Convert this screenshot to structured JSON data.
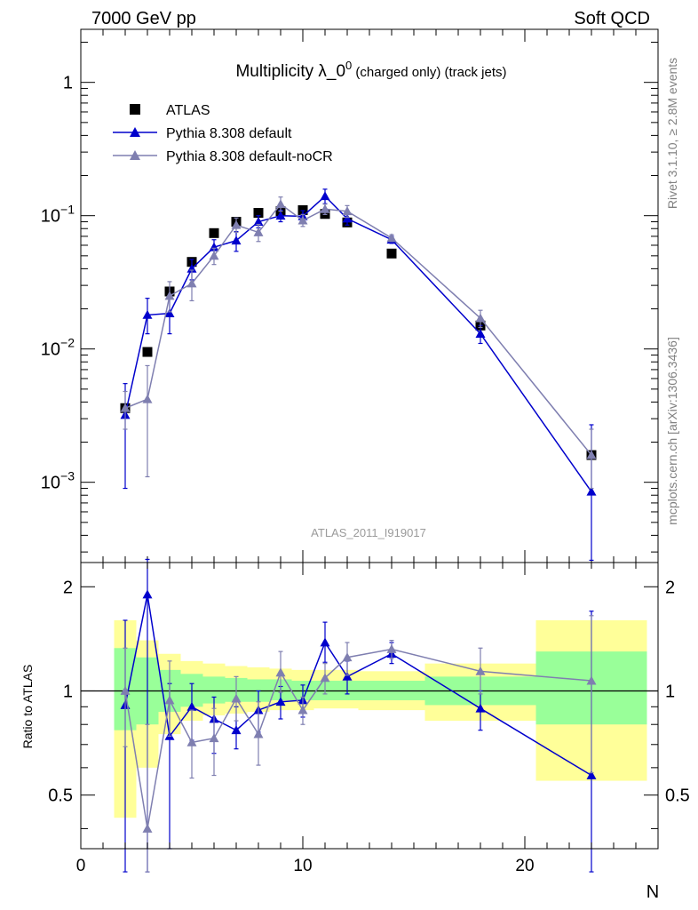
{
  "header": {
    "left": "7000 GeV pp",
    "right": "Soft QCD"
  },
  "side_labels": {
    "rivet": "Rivet 3.1.10, ≥ 2.8M events",
    "mcplots": "mcplots.cern.ch [arXiv:1306.3436]"
  },
  "colors": {
    "atlas": "#000000",
    "default": "#0000cc",
    "nocr": "#7f7fb0",
    "band_yellow": "#ffff99",
    "band_green": "#99ff99"
  },
  "chart_data": [
    {
      "type": "scatter",
      "title": "Multiplicity λ_0",
      "title_sup": "0",
      "title_suffix": " (charged only) (track jets)",
      "watermark": "ATLAS_2011_I919017",
      "xlabel": "",
      "ylabel": "",
      "xlim": [
        0,
        26
      ],
      "ylim": [
        0.00025,
        2.5
      ],
      "yscale": "log",
      "y_ticks": [
        {
          "v": 1,
          "base": "1",
          "exp": ""
        },
        {
          "v": 0.1,
          "base": "10",
          "exp": "−1"
        },
        {
          "v": 0.01,
          "base": "10",
          "exp": "−2"
        },
        {
          "v": 0.001,
          "base": "10",
          "exp": "−3"
        }
      ],
      "legend": {
        "position": "top-left"
      },
      "series": [
        {
          "name": "ATLAS",
          "marker": "square",
          "x": [
            2,
            3,
            4,
            5,
            6,
            7,
            8,
            9,
            10,
            11,
            12,
            14,
            18,
            23
          ],
          "y": [
            0.0036,
            0.0095,
            0.027,
            0.045,
            0.074,
            0.09,
            0.105,
            0.108,
            0.11,
            0.103,
            0.089,
            0.052,
            0.015,
            0.0016
          ]
        },
        {
          "name": "Pythia 8.308 default",
          "marker": "triangle",
          "x": [
            2,
            3,
            4,
            5,
            6,
            7,
            8,
            9,
            10,
            11,
            12,
            14,
            18,
            23
          ],
          "y": [
            0.0032,
            0.018,
            0.0185,
            0.04,
            0.058,
            0.065,
            0.09,
            0.1,
            0.099,
            0.14,
            0.095,
            0.066,
            0.013,
            0.00085
          ],
          "err_lo": [
            0.0009,
            0.013,
            0.013,
            0.033,
            0.05,
            0.054,
            0.081,
            0.09,
            0.09,
            0.123,
            0.085,
            0.062,
            0.011,
            0.00026
          ],
          "err_hi": [
            0.0055,
            0.024,
            0.025,
            0.047,
            0.066,
            0.076,
            0.1,
            0.11,
            0.109,
            0.158,
            0.105,
            0.07,
            0.015,
            0.0027
          ]
        },
        {
          "name": "Pythia 8.308 default-noCR",
          "marker": "triangle",
          "x": [
            2,
            3,
            4,
            5,
            6,
            7,
            8,
            9,
            10,
            11,
            12,
            14,
            18,
            23
          ],
          "y": [
            0.0036,
            0.0042,
            0.025,
            0.031,
            0.05,
            0.085,
            0.075,
            0.122,
            0.092,
            0.112,
            0.108,
            0.068,
            0.017,
            0.0016
          ],
          "err_lo": [
            0.0025,
            0.0011,
            0.019,
            0.023,
            0.043,
            0.075,
            0.064,
            0.108,
            0.083,
            0.102,
            0.097,
            0.064,
            0.0145,
            0.0009
          ],
          "err_hi": [
            0.0048,
            0.0075,
            0.032,
            0.039,
            0.057,
            0.096,
            0.086,
            0.138,
            0.102,
            0.122,
            0.119,
            0.072,
            0.0195,
            0.0025
          ]
        }
      ]
    },
    {
      "type": "scatter",
      "xlabel": "N",
      "ylabel": "Ratio to ATLAS",
      "xlim": [
        0,
        26
      ],
      "ylim": [
        0.35,
        2.35
      ],
      "yscale": "log",
      "x_ticks": [
        0,
        10,
        20
      ],
      "y_ticks": [
        0.5,
        1,
        2
      ],
      "band_bins": [
        {
          "x0": 1.5,
          "x1": 2.5,
          "yellow": [
            0.43,
            1.6
          ],
          "green": [
            0.77,
            1.33
          ]
        },
        {
          "x0": 2.5,
          "x1": 3.5,
          "yellow": [
            0.6,
            1.4
          ],
          "green": [
            0.8,
            1.25
          ]
        },
        {
          "x0": 3.5,
          "x1": 4.5,
          "yellow": [
            0.75,
            1.28
          ],
          "green": [
            0.87,
            1.15
          ]
        },
        {
          "x0": 4.5,
          "x1": 5.5,
          "yellow": [
            0.82,
            1.22
          ],
          "green": [
            0.9,
            1.12
          ]
        },
        {
          "x0": 5.5,
          "x1": 6.5,
          "yellow": [
            0.85,
            1.2
          ],
          "green": [
            0.92,
            1.1
          ]
        },
        {
          "x0": 6.5,
          "x1": 7.5,
          "yellow": [
            0.86,
            1.18
          ],
          "green": [
            0.93,
            1.09
          ]
        },
        {
          "x0": 7.5,
          "x1": 8.5,
          "yellow": [
            0.87,
            1.17
          ],
          "green": [
            0.93,
            1.08
          ]
        },
        {
          "x0": 8.5,
          "x1": 9.5,
          "yellow": [
            0.88,
            1.16
          ],
          "green": [
            0.94,
            1.08
          ]
        },
        {
          "x0": 9.5,
          "x1": 10.5,
          "yellow": [
            0.88,
            1.15
          ],
          "green": [
            0.94,
            1.07
          ]
        },
        {
          "x0": 10.5,
          "x1": 11.5,
          "yellow": [
            0.89,
            1.15
          ],
          "green": [
            0.94,
            1.07
          ]
        },
        {
          "x0": 11.5,
          "x1": 12.5,
          "yellow": [
            0.89,
            1.15
          ],
          "green": [
            0.94,
            1.07
          ]
        },
        {
          "x0": 12.5,
          "x1": 15.5,
          "yellow": [
            0.88,
            1.14
          ],
          "green": [
            0.94,
            1.07
          ]
        },
        {
          "x0": 15.5,
          "x1": 20.5,
          "yellow": [
            0.82,
            1.2
          ],
          "green": [
            0.91,
            1.1
          ]
        },
        {
          "x0": 20.5,
          "x1": 25.5,
          "yellow": [
            0.55,
            1.6
          ],
          "green": [
            0.8,
            1.3
          ]
        }
      ],
      "series": [
        {
          "name": "Pythia 8.308 default",
          "marker": "triangle",
          "x": [
            2,
            3,
            4,
            5,
            6,
            7,
            8,
            9,
            10,
            11,
            12,
            14,
            18,
            23
          ],
          "y": [
            0.91,
            1.9,
            0.74,
            0.9,
            0.83,
            0.77,
            0.88,
            0.93,
            0.94,
            1.38,
            1.1,
            1.28,
            0.89,
            0.57
          ],
          "err_lo": [
            0.3,
            0.3,
            0.35,
            0.72,
            0.66,
            0.68,
            0.76,
            0.83,
            0.84,
            1.21,
            0.98,
            1.2,
            0.77,
            0.3
          ],
          "err_hi": [
            1.6,
            2.4,
            1.05,
            1.05,
            0.96,
            0.9,
            1.0,
            1.03,
            1.04,
            1.58,
            1.22,
            1.38,
            1.0,
            1.7
          ]
        },
        {
          "name": "Pythia 8.308 default-noCR",
          "marker": "triangle",
          "x": [
            2,
            3,
            4,
            5,
            6,
            7,
            8,
            9,
            10,
            11,
            12,
            14,
            18,
            23
          ],
          "y": [
            1.0,
            0.4,
            0.94,
            0.71,
            0.73,
            0.95,
            0.75,
            1.13,
            0.88,
            1.09,
            1.25,
            1.32,
            1.14,
            1.07
          ],
          "err_lo": [
            0.69,
            0.3,
            0.74,
            0.56,
            0.57,
            0.82,
            0.61,
            0.99,
            0.8,
            0.98,
            1.11,
            1.24,
            0.98,
            0.58
          ],
          "err_hi": [
            1.33,
            0.8,
            1.22,
            0.88,
            0.89,
            1.1,
            0.93,
            1.3,
            0.96,
            1.2,
            1.38,
            1.4,
            1.33,
            1.65
          ]
        }
      ]
    }
  ]
}
